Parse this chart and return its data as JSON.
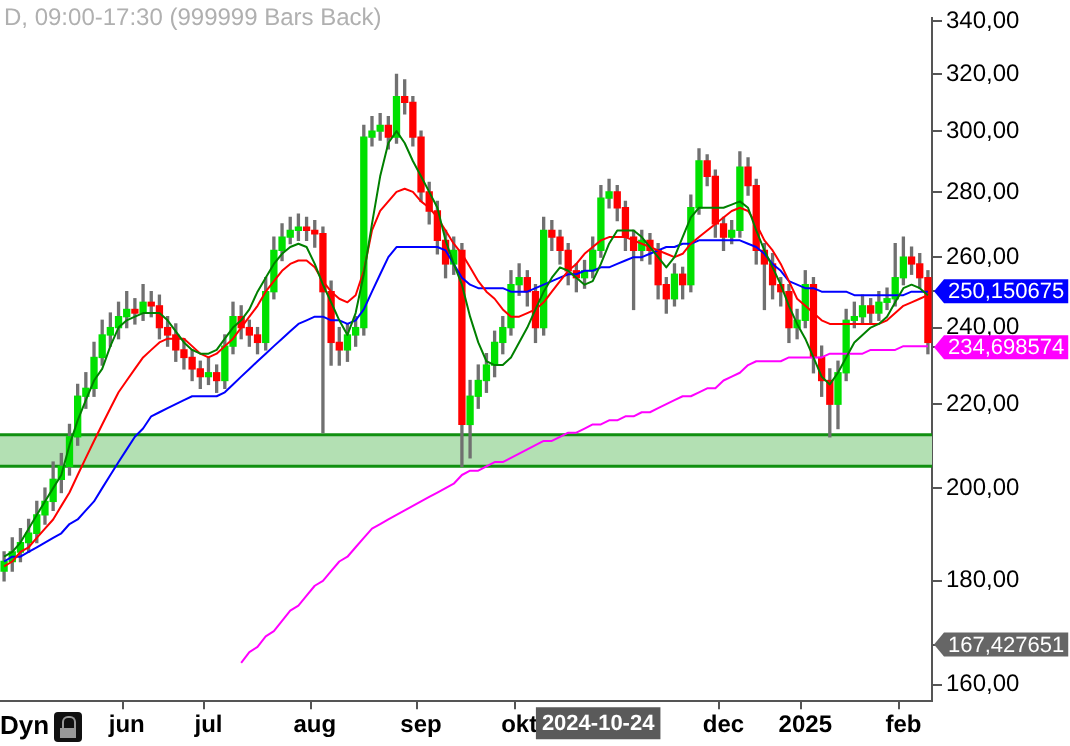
{
  "chart_data": {
    "type": "candlestick",
    "subtitle": "D, 09:00-17:30 (999999 Bars Back)",
    "categories": [
      null,
      null,
      null,
      null,
      null,
      null,
      null,
      null,
      null,
      null,
      null,
      null,
      null,
      null,
      null,
      "jun",
      null,
      null,
      null,
      null,
      null,
      null,
      null,
      null,
      null,
      "jul",
      null,
      null,
      null,
      null,
      null,
      null,
      null,
      null,
      null,
      null,
      null,
      null,
      "aug",
      null,
      null,
      null,
      null,
      null,
      null,
      null,
      null,
      null,
      null,
      null,
      null,
      "sep",
      null,
      null,
      null,
      null,
      null,
      null,
      null,
      null,
      null,
      null,
      null,
      "okt",
      null,
      null,
      null,
      null,
      null,
      null,
      null,
      null,
      null,
      null,
      null,
      null,
      null,
      null,
      null,
      null,
      null,
      null,
      null,
      null,
      null,
      null,
      null,
      null,
      "dec",
      null,
      null,
      null,
      null,
      null,
      null,
      null,
      null,
      null,
      "2025",
      null,
      null,
      null,
      null,
      null,
      null,
      null,
      null,
      null,
      null,
      null,
      "feb",
      null,
      null,
      null
    ],
    "ohlc": [
      [
        182,
        186,
        180,
        184
      ],
      [
        184,
        189,
        182,
        186
      ],
      [
        186,
        191,
        184,
        188
      ],
      [
        188,
        193,
        186,
        190
      ],
      [
        190,
        197,
        188,
        194
      ],
      [
        194,
        200,
        192,
        197
      ],
      [
        197,
        206,
        195,
        202
      ],
      [
        202,
        208,
        199,
        205
      ],
      [
        205,
        215,
        203,
        212
      ],
      [
        212,
        225,
        210,
        222
      ],
      [
        222,
        228,
        219,
        224
      ],
      [
        224,
        236,
        222,
        232
      ],
      [
        232,
        242,
        230,
        238
      ],
      [
        238,
        244,
        235,
        240
      ],
      [
        240,
        247,
        237,
        243
      ],
      [
        243,
        250,
        240,
        245
      ],
      [
        245,
        248,
        241,
        244
      ],
      [
        244,
        252,
        242,
        247
      ],
      [
        247,
        250,
        243,
        246
      ],
      [
        246,
        249,
        237,
        240
      ],
      [
        240,
        243,
        235,
        238
      ],
      [
        238,
        241,
        231,
        234
      ],
      [
        234,
        237,
        229,
        232
      ],
      [
        232,
        234,
        226,
        229
      ],
      [
        229,
        231,
        224,
        227
      ],
      [
        227,
        232,
        225,
        228
      ],
      [
        228,
        230,
        223,
        226
      ],
      [
        226,
        238,
        224,
        235
      ],
      [
        235,
        247,
        233,
        243
      ],
      [
        243,
        246,
        237,
        240
      ],
      [
        240,
        242,
        235,
        238
      ],
      [
        238,
        240,
        233,
        236
      ],
      [
        236,
        254,
        234,
        250
      ],
      [
        250,
        266,
        248,
        262
      ],
      [
        262,
        270,
        259,
        266
      ],
      [
        266,
        272,
        264,
        268
      ],
      [
        268,
        273,
        265,
        269
      ],
      [
        269,
        272,
        265,
        268
      ],
      [
        268,
        271,
        263,
        267
      ],
      [
        267,
        269,
        213,
        250
      ],
      [
        250,
        253,
        230,
        236
      ],
      [
        236,
        240,
        230,
        234
      ],
      [
        234,
        241,
        231,
        238
      ],
      [
        238,
        243,
        235,
        240
      ],
      [
        240,
        302,
        238,
        298
      ],
      [
        298,
        305,
        295,
        300
      ],
      [
        300,
        306,
        297,
        302
      ],
      [
        302,
        305,
        294,
        298
      ],
      [
        298,
        320,
        296,
        312
      ],
      [
        312,
        318,
        306,
        310
      ],
      [
        310,
        312,
        295,
        298
      ],
      [
        298,
        300,
        277,
        280
      ],
      [
        280,
        283,
        270,
        274
      ],
      [
        274,
        277,
        261,
        265
      ],
      [
        265,
        268,
        254,
        258
      ],
      [
        258,
        266,
        255,
        262
      ],
      [
        262,
        264,
        205,
        215
      ],
      [
        215,
        226,
        207,
        222
      ],
      [
        222,
        230,
        219,
        226
      ],
      [
        226,
        233,
        223,
        230
      ],
      [
        230,
        239,
        227,
        236
      ],
      [
        236,
        243,
        233,
        240
      ],
      [
        240,
        256,
        238,
        252
      ],
      [
        252,
        258,
        249,
        254
      ],
      [
        254,
        256,
        246,
        250
      ],
      [
        250,
        252,
        236,
        240
      ],
      [
        240,
        272,
        238,
        268
      ],
      [
        268,
        271,
        262,
        266
      ],
      [
        266,
        268,
        258,
        262
      ],
      [
        262,
        264,
        252,
        256
      ],
      [
        256,
        258,
        250,
        254
      ],
      [
        254,
        259,
        251,
        256
      ],
      [
        256,
        266,
        254,
        262
      ],
      [
        262,
        282,
        260,
        278
      ],
      [
        278,
        284,
        275,
        280
      ],
      [
        280,
        282,
        271,
        275
      ],
      [
        275,
        277,
        262,
        266
      ],
      [
        266,
        268,
        245,
        262
      ],
      [
        262,
        268,
        259,
        265
      ],
      [
        265,
        267,
        258,
        262
      ],
      [
        262,
        264,
        248,
        252
      ],
      [
        252,
        254,
        244,
        248
      ],
      [
        248,
        258,
        246,
        255
      ],
      [
        255,
        257,
        248,
        252
      ],
      [
        252,
        279,
        250,
        275
      ],
      [
        275,
        294,
        273,
        290
      ],
      [
        290,
        292,
        282,
        285
      ],
      [
        285,
        287,
        266,
        270
      ],
      [
        270,
        272,
        262,
        266
      ],
      [
        266,
        271,
        264,
        268
      ],
      [
        268,
        293,
        266,
        288
      ],
      [
        288,
        291,
        279,
        282
      ],
      [
        282,
        284,
        258,
        262
      ],
      [
        262,
        264,
        245,
        258
      ],
      [
        258,
        261,
        248,
        252
      ],
      [
        252,
        254,
        246,
        250
      ],
      [
        250,
        252,
        236,
        240
      ],
      [
        240,
        245,
        237,
        242
      ],
      [
        242,
        256,
        240,
        252
      ],
      [
        252,
        254,
        228,
        232
      ],
      [
        232,
        235,
        222,
        226
      ],
      [
        226,
        229,
        212,
        220
      ],
      [
        220,
        231,
        214,
        228
      ],
      [
        228,
        245,
        226,
        242
      ],
      [
        242,
        247,
        240,
        243
      ],
      [
        243,
        249,
        241,
        246
      ],
      [
        246,
        248,
        241,
        244
      ],
      [
        244,
        250,
        242,
        247
      ],
      [
        247,
        251,
        245,
        248
      ],
      [
        248,
        264,
        246,
        254
      ],
      [
        254,
        266,
        252,
        260
      ],
      [
        260,
        263,
        255,
        258
      ],
      [
        258,
        261,
        251,
        254
      ],
      [
        254,
        256,
        233,
        236
      ]
    ],
    "series": [
      {
        "type": "line",
        "color": "#008000",
        "values": [
          185,
          186,
          188,
          191,
          194,
          197,
          200,
          203,
          210,
          216,
          221,
          226,
          229,
          235,
          240,
          242,
          243,
          244,
          244,
          244,
          242,
          239,
          236,
          234,
          233,
          233,
          234,
          237,
          240,
          242,
          245,
          250,
          254,
          258,
          261,
          263,
          264,
          263,
          258,
          252,
          247,
          242,
          238,
          244,
          255,
          270,
          285,
          296,
          300,
          296,
          290,
          285,
          280,
          275,
          265,
          258,
          252,
          243,
          236,
          231,
          230,
          230,
          232,
          236,
          240,
          245,
          250,
          254,
          257,
          256,
          254,
          252,
          253,
          258,
          264,
          268,
          268,
          268,
          266,
          263,
          260,
          257,
          260,
          266,
          272,
          275,
          275,
          275,
          275,
          276,
          277,
          275,
          268,
          262,
          257,
          252,
          246,
          241,
          237,
          232,
          227,
          225,
          228,
          232,
          236,
          238,
          240,
          241,
          243,
          247,
          251,
          252,
          251,
          249
        ]
      },
      {
        "type": "line",
        "color": "#ff0000",
        "values": [
          183,
          184,
          186,
          187,
          189,
          191,
          193,
          196,
          199,
          203,
          207,
          211,
          215,
          219,
          223,
          226,
          229,
          232,
          234,
          236,
          237,
          237,
          237,
          235,
          233,
          232,
          233,
          235,
          237,
          240,
          243,
          246,
          250,
          253,
          256,
          258,
          259,
          259,
          257,
          253,
          250,
          248,
          247,
          249,
          256,
          268,
          274,
          277,
          280,
          281,
          280,
          277,
          275,
          272,
          268,
          264,
          261,
          257,
          253,
          250,
          248,
          245,
          243,
          243,
          244,
          245,
          247,
          250,
          253,
          256,
          258,
          261,
          263,
          265,
          266,
          266,
          266,
          265,
          264,
          263,
          262,
          261,
          260,
          261,
          264,
          266,
          268,
          270,
          272,
          274,
          275,
          274,
          270,
          265,
          262,
          258,
          253,
          248,
          246,
          244,
          242,
          241,
          241,
          241,
          241,
          241,
          241,
          241,
          242,
          244,
          246,
          247,
          248,
          249
        ]
      },
      {
        "type": "line",
        "color": "#0000ff",
        "values": [
          184,
          185,
          185,
          186,
          187,
          188,
          189,
          190,
          192,
          193,
          195,
          197,
          200,
          203,
          206,
          209,
          212,
          214,
          217,
          218,
          219,
          220,
          221,
          222,
          222,
          222,
          222,
          223,
          225,
          227,
          229,
          231,
          233,
          235,
          237,
          239,
          241,
          242,
          243,
          243,
          242,
          242,
          241,
          242,
          245,
          250,
          255,
          260,
          263,
          263,
          263,
          263,
          263,
          263,
          262,
          258,
          254,
          252,
          251,
          251,
          251,
          251,
          250,
          250,
          250,
          251,
          252,
          253,
          254,
          255,
          255,
          256,
          256,
          257,
          257,
          258,
          259,
          260,
          260,
          261,
          262,
          263,
          263,
          264,
          264,
          265,
          265,
          265,
          265,
          265,
          265,
          264,
          263,
          261,
          258,
          256,
          253,
          252,
          251,
          251,
          250,
          250,
          250,
          250,
          249,
          249,
          249,
          249,
          249,
          249,
          249,
          250,
          250,
          250
        ]
      },
      {
        "type": "line",
        "color": "#ff00ff",
        "values": [
          null,
          null,
          null,
          null,
          null,
          null,
          null,
          null,
          null,
          null,
          null,
          null,
          null,
          null,
          null,
          null,
          null,
          null,
          null,
          null,
          null,
          null,
          null,
          null,
          null,
          null,
          null,
          null,
          null,
          164,
          166,
          167,
          169,
          170,
          172,
          174,
          175,
          177,
          179,
          180,
          182,
          184,
          185,
          187,
          189,
          191,
          192,
          193,
          194,
          195,
          196,
          197,
          198,
          199,
          200,
          201,
          203,
          204,
          204,
          205,
          206,
          206,
          207,
          208,
          209,
          210,
          211,
          211,
          212,
          213,
          213,
          214,
          215,
          215,
          216,
          216,
          217,
          217,
          218,
          218,
          219,
          220,
          221,
          222,
          222,
          223,
          224,
          224,
          226,
          227,
          228,
          230,
          231,
          231,
          231,
          231,
          232,
          232,
          232,
          232,
          232,
          233,
          233,
          233,
          233,
          233,
          234,
          234,
          234,
          234,
          235,
          235,
          235,
          235
        ]
      }
    ],
    "bands": [
      {
        "axis": "y",
        "from": 205,
        "to": 212.5,
        "color": "#b3e0b3"
      }
    ],
    "ref_lines": [
      {
        "axis": "y",
        "value": 205,
        "color": "#109010"
      },
      {
        "axis": "y",
        "value": 212.5,
        "color": "#109010"
      }
    ],
    "ylim": [
      157,
      341
    ],
    "yticks": [
      {
        "value": 160,
        "label": "160,00"
      },
      {
        "value": 167.427651,
        "label": "167,427651"
      },
      {
        "value": 234.698574,
        "label": "234,698574"
      },
      {
        "value": 250.150675,
        "label": "250,150675"
      },
      {
        "value": 180,
        "label": "180,00"
      },
      {
        "value": 200,
        "label": "200,00"
      },
      {
        "value": 220,
        "label": "220,00"
      },
      {
        "value": 240,
        "label": "240,00"
      },
      {
        "value": 260,
        "label": "260,00"
      },
      {
        "value": 280,
        "label": "280,00"
      },
      {
        "value": 300,
        "label": "300,00"
      },
      {
        "value": 320,
        "label": "320,00"
      },
      {
        "value": 340,
        "label": "340,00"
      }
    ],
    "log": "y",
    "grid": false,
    "legend": false,
    "marker": "none",
    "annotations": [
      "Dyn",
      "2024-10-24"
    ]
  }
}
